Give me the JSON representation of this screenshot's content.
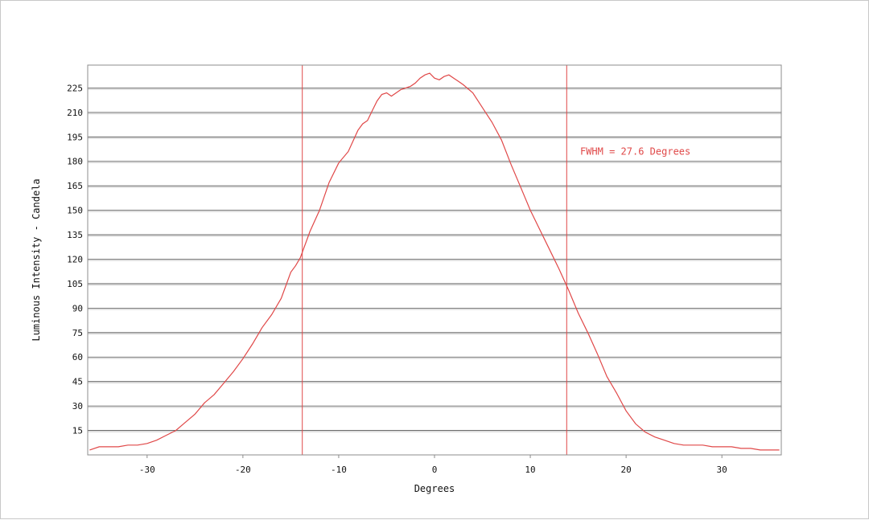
{
  "chart_data": {
    "type": "line",
    "title": "",
    "xlabel": "Degrees",
    "ylabel": "Luminous Intensity - Candela",
    "xlim": [
      -36.2,
      36.2
    ],
    "ylim": [
      0,
      239
    ],
    "x_ticks": [
      -30,
      -20,
      -10,
      0,
      10,
      20,
      30
    ],
    "x_tick_labels": [
      "-30",
      "-20",
      "-10",
      "0",
      "10",
      "20",
      "30"
    ],
    "y_ticks": [
      15,
      30,
      45,
      60,
      75,
      90,
      105,
      120,
      135,
      150,
      165,
      180,
      195,
      210,
      225
    ],
    "y_tick_labels": [
      "15",
      "30",
      "45",
      "60",
      "75",
      "90",
      "105",
      "120",
      "135",
      "150",
      "165",
      "180",
      "195",
      "210",
      "225"
    ],
    "grid": {
      "horizontal": true,
      "vertical": false
    },
    "line_color": "#e04848",
    "marker_lines": [
      {
        "x": -13.8
      },
      {
        "x": 13.8
      }
    ],
    "annotation": {
      "text": "FWHM = 27.6 Degrees",
      "x": 15.2,
      "y": 186
    },
    "series": [
      {
        "x": [
          -36,
          -35,
          -34,
          -33,
          -32,
          -31,
          -30,
          -29,
          -28,
          -27,
          -26,
          -25,
          -24,
          -23,
          -22,
          -21,
          -20,
          -19,
          -18,
          -17,
          -16,
          -15,
          -14.5,
          -14,
          -13,
          -12,
          -11,
          -10,
          -9,
          -8,
          -7.5,
          -7,
          -6.5,
          -6,
          -5.5,
          -5,
          -4.5,
          -4,
          -3.5,
          -3,
          -2.5,
          -2,
          -1.5,
          -1,
          -0.5,
          0,
          0.5,
          1,
          1.5,
          2,
          2.5,
          3,
          4,
          5,
          6,
          7,
          8,
          9,
          10,
          11,
          12,
          13,
          14,
          15,
          16,
          17,
          18,
          19,
          20,
          21,
          22,
          23,
          24,
          25,
          26,
          27,
          28,
          29,
          30,
          31,
          32,
          33,
          34,
          35,
          36
        ],
        "y": [
          3,
          5,
          5,
          5,
          6,
          6,
          7,
          9,
          12,
          15,
          20,
          25,
          32,
          37,
          44,
          51,
          59,
          68,
          78,
          86,
          96,
          112,
          116,
          121,
          137,
          150,
          167,
          179,
          186,
          199,
          203,
          205,
          211,
          217,
          221,
          222,
          220,
          222,
          224,
          225,
          226,
          228,
          231,
          233,
          234,
          231,
          230,
          232,
          233,
          231,
          229,
          227,
          222,
          213,
          204,
          193,
          178,
          164,
          150,
          138,
          126,
          114,
          101,
          87,
          75,
          62,
          48,
          38,
          27,
          19,
          14,
          11,
          9,
          7,
          6,
          6,
          6,
          5,
          5,
          5,
          4,
          4,
          3,
          3,
          3
        ]
      }
    ]
  }
}
